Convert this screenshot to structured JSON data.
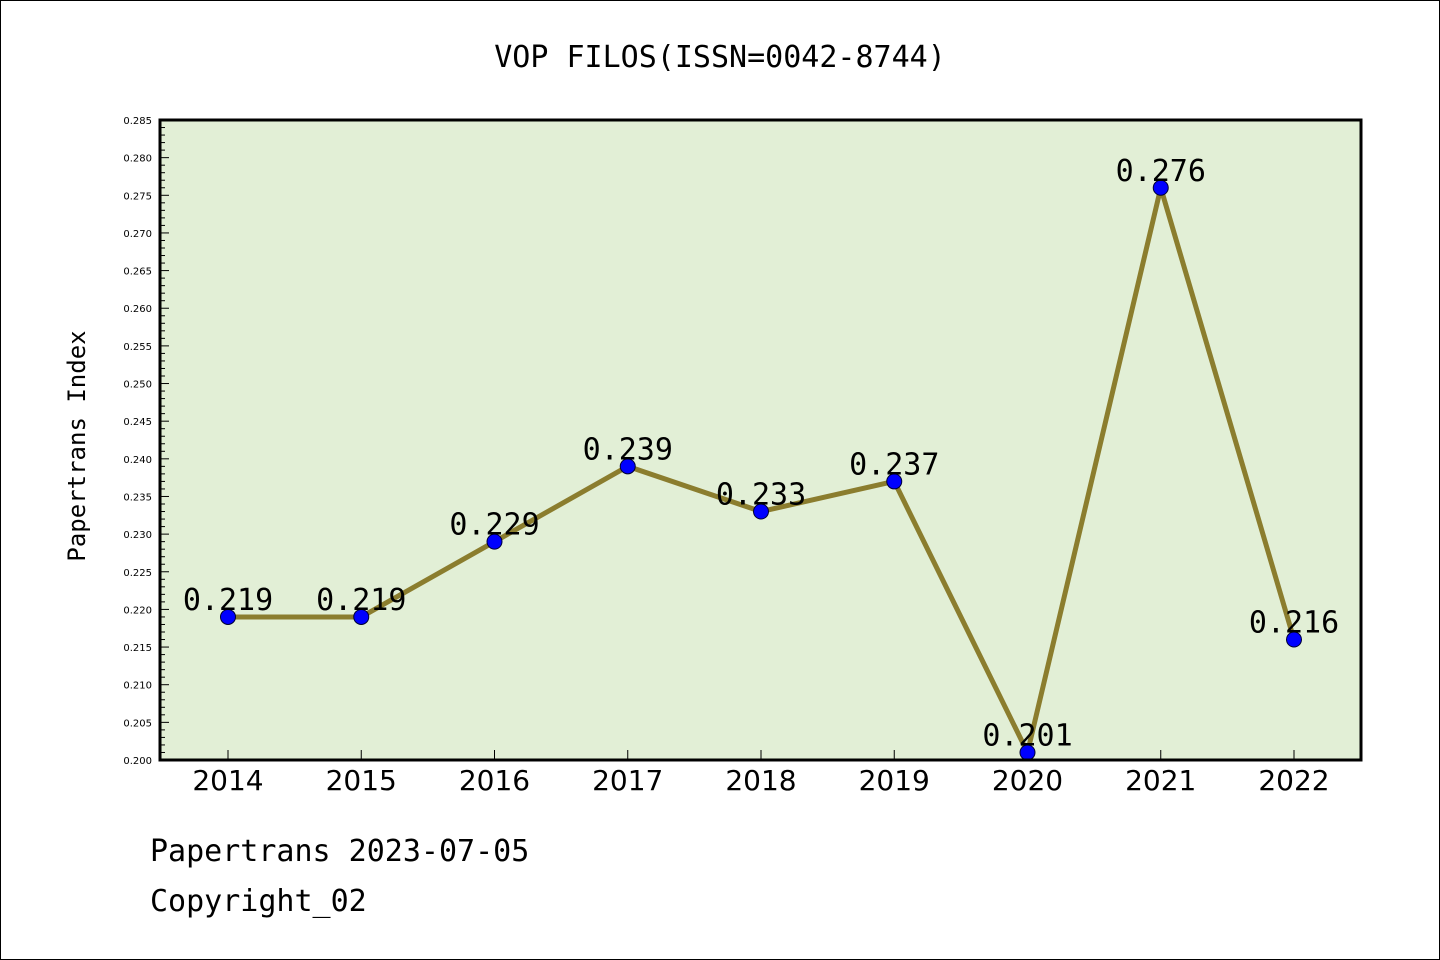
{
  "chart_data": {
    "type": "line",
    "title": "VOP FILOS(ISSN=0042-8744)",
    "xlabel": "",
    "ylabel": "Papertrans Index",
    "categories": [
      "2014",
      "2015",
      "2016",
      "2017",
      "2018",
      "2019",
      "2020",
      "2021",
      "2022"
    ],
    "series": [
      {
        "values": [
          0.219,
          0.219,
          0.229,
          0.239,
          0.233,
          0.237,
          0.201,
          0.276,
          0.216
        ]
      }
    ],
    "data_labels": [
      "0.219",
      "0.219",
      "0.229",
      "0.239",
      "0.233",
      "0.237",
      "0.201",
      "0.276",
      "0.216"
    ],
    "ylim": [
      0.2,
      0.285
    ],
    "yticks": [
      "0.200",
      "0.205",
      "0.210",
      "0.215",
      "0.220",
      "0.225",
      "0.230",
      "0.235",
      "0.240",
      "0.245",
      "0.250",
      "0.255",
      "0.260",
      "0.265",
      "0.270",
      "0.275",
      "0.280",
      "0.285"
    ],
    "grid": false,
    "legend": "none",
    "colors": {
      "plot_bg": "#e2efd6",
      "line": "#8b7d2e",
      "marker": "#0000ff"
    }
  },
  "footer": {
    "line1": "Papertrans 2023-07-05",
    "line2": "Copyright_02"
  }
}
